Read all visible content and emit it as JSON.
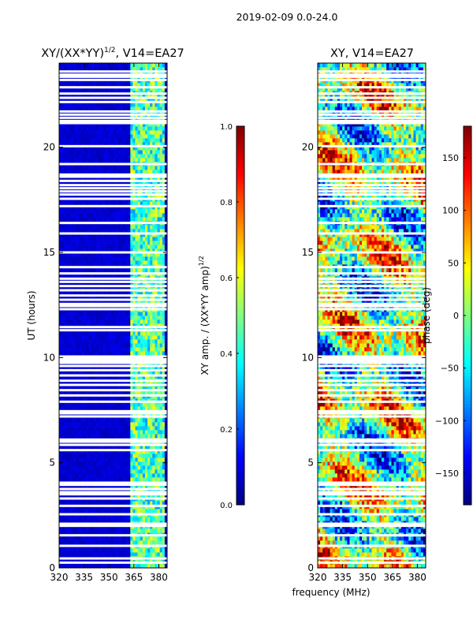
{
  "figure_title": "2019-02-09 0.0-24.0",
  "xlabel_shared": "frequency (MHz)",
  "colormap": [
    "#00007f",
    "#0000ff",
    "#007fff",
    "#00ffff",
    "#7fff7f",
    "#ffff00",
    "#ff7f00",
    "#ff0000",
    "#7f0000"
  ],
  "chart_data": [
    {
      "type": "heatmap",
      "title": "XY/(XX*YY)",
      "title_superscript": "1/2",
      "title_suffix": ", V14=EA27",
      "xlabel": "",
      "ylabel": "UT (hours)",
      "xlim": [
        320,
        385
      ],
      "ylim": [
        0,
        24
      ],
      "xticks": [
        320,
        335,
        350,
        365,
        380
      ],
      "yticks": [
        0,
        5,
        10,
        15,
        20
      ],
      "colorbar": {
        "label": "XY amp. / (XX*YY amp)",
        "label_superscript": "1/2",
        "range": [
          0.0,
          1.0
        ],
        "ticks": [
          "0.0",
          "0.2",
          "0.4",
          "0.6",
          "0.8",
          "1.0"
        ]
      },
      "description_values": {
        "background_value": 0.08,
        "bright_band_MHz": [
          363,
          383
        ],
        "bright_band_value": 0.45
      }
    },
    {
      "type": "heatmap",
      "title": "XY, V14=EA27",
      "xlabel": "frequency (MHz)",
      "ylabel": "",
      "xlim": [
        320,
        385
      ],
      "ylim": [
        0,
        24
      ],
      "xticks": [
        320,
        335,
        350,
        365,
        380
      ],
      "yticks": [
        0,
        5,
        10,
        15,
        20
      ],
      "colorbar": {
        "label": "phase (deg)",
        "range": [
          -180,
          180
        ],
        "ticks": [
          "150",
          "100",
          "50",
          "0",
          "−50",
          "−100",
          "−150"
        ]
      }
    }
  ],
  "flagged_rows_hours": [
    0.25,
    0.45,
    1.05,
    1.55,
    2.0,
    2.1,
    2.55,
    2.95,
    3.3,
    3.5,
    3.6,
    3.75,
    3.95,
    4.05,
    5.6,
    5.85,
    6.0,
    6.1,
    7.2,
    7.35,
    7.45,
    7.9,
    8.2,
    8.45,
    8.7,
    8.9,
    9.15,
    9.4,
    9.6,
    9.75,
    9.85,
    9.95,
    10.05,
    11.3,
    11.45,
    12.3,
    12.45,
    12.55,
    12.75,
    12.95,
    13.2,
    13.4,
    13.6,
    13.75,
    14.0,
    14.3,
    15.0,
    15.9,
    16.4,
    17.2,
    17.55,
    17.75,
    17.9,
    18.05,
    18.2,
    18.4,
    18.6,
    18.7,
    19.2,
    20.05,
    21.15,
    21.25,
    21.4,
    21.55,
    21.7,
    22.15,
    22.35,
    22.55,
    22.85,
    23.2,
    23.35,
    23.45,
    23.6
  ]
}
